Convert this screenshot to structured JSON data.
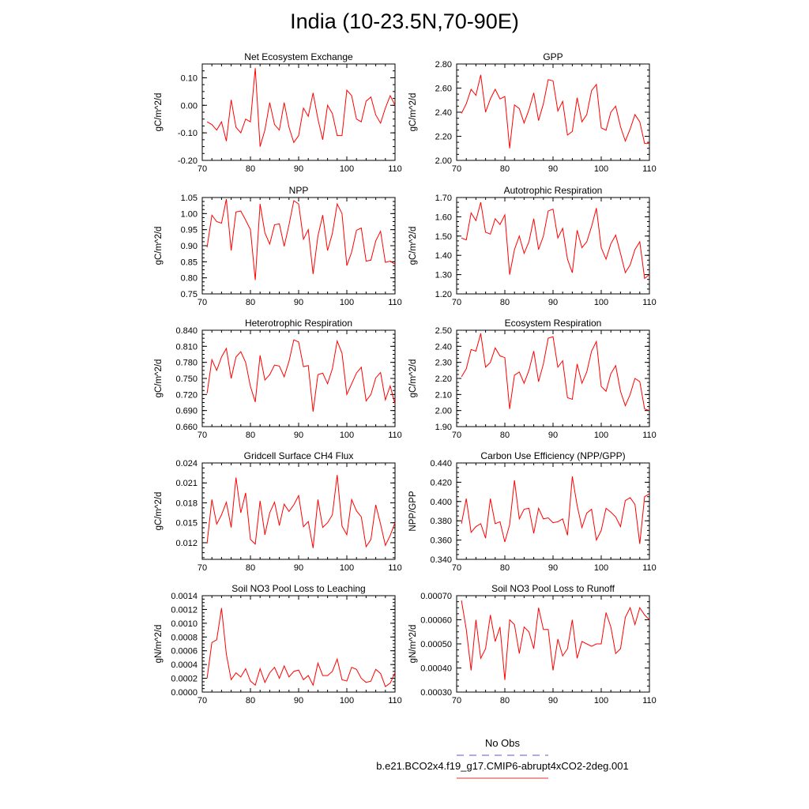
{
  "title": "India (10-23.5N,70-90E)",
  "legend": {
    "entries": [
      {
        "label": "No Obs",
        "color": "#5a5ad8",
        "style": "dashed"
      },
      {
        "label": "b.e21.BCO2x4.f19_g17.CMIP6-abrupt4xCO2-2deg.001",
        "color": "#e03030",
        "style": "solid"
      }
    ]
  },
  "series_color": "#ff0000",
  "chart_data": [
    {
      "type": "line",
      "title": "Net Ecosystem Exchange",
      "ylabel": "gC/m^2/d",
      "xlim": [
        70,
        110
      ],
      "ylim": [
        -0.2,
        0.15
      ],
      "xticks": [
        "70",
        "80",
        "90",
        "100",
        "110"
      ],
      "yticks": [
        "-0.20",
        "-0.10",
        "0.00",
        "0.10"
      ],
      "ytick_values": [
        -0.2,
        -0.1,
        0.0,
        0.1
      ],
      "x_start": 71,
      "values": [
        -0.06,
        -0.07,
        -0.09,
        -0.06,
        -0.13,
        0.02,
        -0.08,
        -0.1,
        -0.05,
        -0.06,
        0.135,
        -0.15,
        -0.09,
        0.01,
        -0.07,
        -0.09,
        0.01,
        -0.08,
        -0.135,
        -0.11,
        -0.01,
        -0.04,
        0.045,
        -0.05,
        -0.125,
        0.0,
        -0.03,
        -0.11,
        -0.11,
        0.055,
        0.035,
        -0.05,
        -0.06,
        0.015,
        0.03,
        -0.035,
        -0.065,
        -0.01,
        0.035,
        0.0
      ]
    },
    {
      "type": "line",
      "title": "GPP",
      "ylabel": "gC/m^2/d",
      "xlim": [
        70,
        110
      ],
      "ylim": [
        2.0,
        2.8
      ],
      "xticks": [
        "70",
        "80",
        "90",
        "100",
        "110"
      ],
      "yticks": [
        "2.00",
        "2.20",
        "2.40",
        "2.60",
        "2.80"
      ],
      "ytick_values": [
        2.0,
        2.2,
        2.4,
        2.6,
        2.8
      ],
      "x_start": 71,
      "values": [
        2.39,
        2.47,
        2.59,
        2.54,
        2.71,
        2.4,
        2.51,
        2.59,
        2.51,
        2.53,
        2.1,
        2.46,
        2.43,
        2.31,
        2.42,
        2.56,
        2.33,
        2.47,
        2.67,
        2.66,
        2.41,
        2.49,
        2.21,
        2.24,
        2.52,
        2.32,
        2.38,
        2.58,
        2.63,
        2.27,
        2.25,
        2.4,
        2.45,
        2.28,
        2.16,
        2.26,
        2.38,
        2.32,
        2.14,
        2.14
      ]
    },
    {
      "type": "line",
      "title": "NPP",
      "ylabel": "gC/m^2/d",
      "xlim": [
        70,
        110
      ],
      "ylim": [
        0.75,
        1.05
      ],
      "xticks": [
        "70",
        "80",
        "90",
        "100",
        "110"
      ],
      "yticks": [
        "0.75",
        "0.80",
        "0.85",
        "0.90",
        "0.95",
        "1.00",
        "1.05"
      ],
      "ytick_values": [
        0.75,
        0.8,
        0.85,
        0.9,
        0.95,
        1.0,
        1.05
      ],
      "x_start": 71,
      "values": [
        0.895,
        0.995,
        0.975,
        0.97,
        1.045,
        0.885,
        1.005,
        1.008,
        0.98,
        0.95,
        0.793,
        1.03,
        0.94,
        0.905,
        0.965,
        0.968,
        0.898,
        0.965,
        1.04,
        1.03,
        0.92,
        0.95,
        0.812,
        0.93,
        0.995,
        0.885,
        0.938,
        1.03,
        1.0,
        0.838,
        0.88,
        0.948,
        0.955,
        0.852,
        0.855,
        0.915,
        0.945,
        0.848,
        0.852,
        0.842
      ]
    },
    {
      "type": "line",
      "title": "Autotrophic Respiration",
      "ylabel": "gC/m^2/d",
      "xlim": [
        70,
        110
      ],
      "ylim": [
        1.2,
        1.7
      ],
      "xticks": [
        "70",
        "80",
        "90",
        "100",
        "110"
      ],
      "yticks": [
        "1.20",
        "1.30",
        "1.40",
        "1.50",
        "1.60",
        "1.70"
      ],
      "ytick_values": [
        1.2,
        1.3,
        1.4,
        1.5,
        1.6,
        1.7
      ],
      "x_start": 71,
      "values": [
        1.49,
        1.48,
        1.62,
        1.58,
        1.675,
        1.52,
        1.51,
        1.59,
        1.56,
        1.61,
        1.3,
        1.43,
        1.5,
        1.41,
        1.47,
        1.59,
        1.43,
        1.5,
        1.63,
        1.64,
        1.49,
        1.54,
        1.38,
        1.31,
        1.53,
        1.44,
        1.47,
        1.55,
        1.645,
        1.44,
        1.38,
        1.46,
        1.505,
        1.41,
        1.31,
        1.35,
        1.43,
        1.47,
        1.28,
        1.3
      ]
    },
    {
      "type": "line",
      "title": "Heterotrophic Respiration",
      "ylabel": "gC/m^2/d",
      "xlim": [
        70,
        110
      ],
      "ylim": [
        0.66,
        0.84
      ],
      "xticks": [
        "70",
        "80",
        "90",
        "100",
        "110"
      ],
      "yticks": [
        "0.660",
        "0.690",
        "0.720",
        "0.750",
        "0.780",
        "0.810",
        "0.840"
      ],
      "ytick_values": [
        0.66,
        0.69,
        0.72,
        0.75,
        0.78,
        0.81,
        0.84
      ],
      "x_start": 71,
      "values": [
        0.722,
        0.785,
        0.765,
        0.79,
        0.806,
        0.75,
        0.79,
        0.8,
        0.78,
        0.735,
        0.706,
        0.793,
        0.747,
        0.757,
        0.775,
        0.773,
        0.753,
        0.782,
        0.822,
        0.818,
        0.772,
        0.774,
        0.688,
        0.757,
        0.76,
        0.74,
        0.768,
        0.82,
        0.797,
        0.72,
        0.74,
        0.76,
        0.771,
        0.708,
        0.72,
        0.751,
        0.761,
        0.71,
        0.736,
        0.702
      ]
    },
    {
      "type": "line",
      "title": "Ecosystem Respiration",
      "ylabel": "gC/m^2/d",
      "xlim": [
        70,
        110
      ],
      "ylim": [
        1.9,
        2.5
      ],
      "xticks": [
        "70",
        "80",
        "90",
        "100",
        "110"
      ],
      "yticks": [
        "1.90",
        "2.00",
        "2.10",
        "2.20",
        "2.30",
        "2.40",
        "2.50"
      ],
      "ytick_values": [
        1.9,
        2.0,
        2.1,
        2.2,
        2.3,
        2.4,
        2.5
      ],
      "x_start": 71,
      "values": [
        2.21,
        2.26,
        2.38,
        2.37,
        2.48,
        2.27,
        2.3,
        2.39,
        2.34,
        2.33,
        2.01,
        2.22,
        2.24,
        2.17,
        2.25,
        2.37,
        2.18,
        2.29,
        2.45,
        2.46,
        2.27,
        2.31,
        2.08,
        2.07,
        2.29,
        2.17,
        2.24,
        2.37,
        2.43,
        2.15,
        2.12,
        2.23,
        2.28,
        2.12,
        2.03,
        2.1,
        2.2,
        2.18,
        2.01,
        2.0
      ]
    },
    {
      "type": "line",
      "title": "Gridcell Surface CH4 Flux",
      "ylabel": "gC/m^2/d",
      "xlim": [
        70,
        110
      ],
      "ylim": [
        0.0095,
        0.024
      ],
      "xticks": [
        "70",
        "80",
        "90",
        "100",
        "110"
      ],
      "yticks": [
        "0.012",
        "0.015",
        "0.018",
        "0.021",
        "0.024"
      ],
      "ytick_values": [
        0.012,
        0.015,
        0.018,
        0.021,
        0.024
      ],
      "x_start": 71,
      "values": [
        0.0119,
        0.0185,
        0.0148,
        0.0162,
        0.0181,
        0.0143,
        0.0218,
        0.0165,
        0.0195,
        0.0125,
        0.0118,
        0.0183,
        0.0132,
        0.0165,
        0.0181,
        0.0146,
        0.0178,
        0.0167,
        0.0177,
        0.0191,
        0.0144,
        0.0152,
        0.0112,
        0.0185,
        0.0143,
        0.015,
        0.0162,
        0.0222,
        0.0145,
        0.0132,
        0.0185,
        0.0168,
        0.0159,
        0.0114,
        0.0125,
        0.0177,
        0.0148,
        0.0116,
        0.0131,
        0.015
      ]
    },
    {
      "type": "line",
      "title": "Carbon Use Efficiency (NPP/GPP)",
      "ylabel": "NPP/GPP",
      "xlim": [
        70,
        110
      ],
      "ylim": [
        0.34,
        0.44
      ],
      "xticks": [
        "70",
        "80",
        "90",
        "100",
        "110"
      ],
      "yticks": [
        "0.340",
        "0.360",
        "0.380",
        "0.400",
        "0.420",
        "0.440"
      ],
      "ytick_values": [
        0.34,
        0.36,
        0.38,
        0.4,
        0.42,
        0.44
      ],
      "x_start": 71,
      "values": [
        0.377,
        0.403,
        0.368,
        0.374,
        0.377,
        0.362,
        0.403,
        0.377,
        0.379,
        0.358,
        0.376,
        0.422,
        0.382,
        0.392,
        0.393,
        0.367,
        0.393,
        0.382,
        0.383,
        0.378,
        0.379,
        0.382,
        0.365,
        0.426,
        0.396,
        0.373,
        0.388,
        0.392,
        0.36,
        0.37,
        0.393,
        0.389,
        0.384,
        0.374,
        0.401,
        0.404,
        0.397,
        0.356,
        0.405,
        0.408
      ]
    },
    {
      "type": "line",
      "title": "Soil NO3 Pool Loss to Leaching",
      "ylabel": "gN/m^2/d",
      "xlim": [
        70,
        110
      ],
      "ylim": [
        0.0,
        0.0014
      ],
      "xticks": [
        "70",
        "80",
        "90",
        "100",
        "110"
      ],
      "yticks": [
        "0.0000",
        "0.0002",
        "0.0004",
        "0.0006",
        "0.0008",
        "0.0010",
        "0.0012",
        "0.0014"
      ],
      "ytick_values": [
        0.0,
        0.0002,
        0.0004,
        0.0006,
        0.0008,
        0.001,
        0.0012,
        0.0014
      ],
      "x_start": 71,
      "values": [
        0.0002,
        0.00072,
        0.00076,
        0.00122,
        0.00055,
        0.00018,
        0.00028,
        0.00022,
        0.00034,
        0.00016,
        0.0001,
        0.00034,
        0.00014,
        0.00028,
        0.00036,
        0.0002,
        0.00038,
        0.00022,
        0.0003,
        0.00032,
        0.00018,
        0.00024,
        0.0001,
        0.00042,
        0.00024,
        0.00024,
        0.0003,
        0.00048,
        0.00018,
        0.00016,
        0.00036,
        0.00033,
        0.0002,
        0.00014,
        0.00016,
        0.00033,
        0.00027,
        8e-05,
        0.00013,
        0.00028
      ]
    },
    {
      "type": "line",
      "title": "Soil NO3 Pool Loss to Runoff",
      "ylabel": "gN/m^2/d",
      "xlim": [
        70,
        110
      ],
      "ylim": [
        0.0003,
        0.0007
      ],
      "xticks": [
        "70",
        "80",
        "90",
        "100",
        "110"
      ],
      "yticks": [
        "0.00030",
        "0.00040",
        "0.00050",
        "0.00060",
        "0.00070"
      ],
      "ytick_values": [
        0.0003,
        0.0004,
        0.0005,
        0.0006,
        0.0007
      ],
      "x_start": 71,
      "values": [
        0.00068,
        0.00056,
        0.00039,
        0.0006,
        0.00044,
        0.00048,
        0.00062,
        0.00051,
        0.00057,
        0.00035,
        0.0006,
        0.00058,
        0.00046,
        0.00057,
        0.00055,
        0.00048,
        0.00065,
        0.00056,
        0.00056,
        0.00039,
        0.00052,
        0.00045,
        0.00048,
        0.0006,
        0.00044,
        0.00051,
        0.0005,
        0.00049,
        0.0005,
        0.0005,
        0.00063,
        0.00057,
        0.00046,
        0.00048,
        0.00061,
        0.00065,
        0.00058,
        0.00065,
        0.00062,
        0.0006
      ]
    }
  ]
}
